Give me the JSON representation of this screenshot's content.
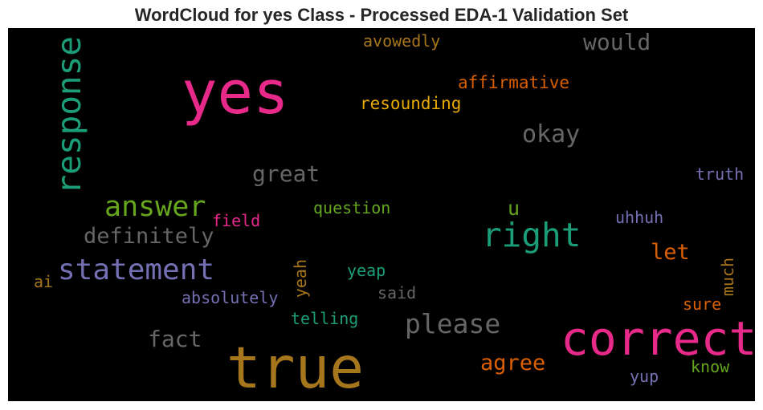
{
  "chart_data": {
    "type": "wordcloud",
    "title": "WordCloud for yes Class - Processed EDA-1 Validation Set",
    "background": "#000000",
    "words": [
      {
        "text": "yes",
        "weight": 1.0,
        "color": "#e7298a",
        "rotated": false
      },
      {
        "text": "true",
        "weight": 0.96,
        "color": "#a6761d",
        "rotated": false
      },
      {
        "text": "correct",
        "weight": 0.78,
        "color": "#e7298a",
        "rotated": false
      },
      {
        "text": "response",
        "weight": 0.55,
        "color": "#1b9e77",
        "rotated": true
      },
      {
        "text": "right",
        "weight": 0.56,
        "color": "#1b9e77",
        "rotated": false
      },
      {
        "text": "statement",
        "weight": 0.48,
        "color": "#7570b3",
        "rotated": false
      },
      {
        "text": "answer",
        "weight": 0.47,
        "color": "#66a61e",
        "rotated": false
      },
      {
        "text": "please",
        "weight": 0.45,
        "color": "#666666",
        "rotated": false
      },
      {
        "text": "definitely",
        "weight": 0.37,
        "color": "#666666",
        "rotated": false
      },
      {
        "text": "okay",
        "weight": 0.4,
        "color": "#666666",
        "rotated": false
      },
      {
        "text": "great",
        "weight": 0.38,
        "color": "#666666",
        "rotated": false
      },
      {
        "text": "would",
        "weight": 0.38,
        "color": "#666666",
        "rotated": false
      },
      {
        "text": "fact",
        "weight": 0.38,
        "color": "#666666",
        "rotated": false
      },
      {
        "text": "agree",
        "weight": 0.37,
        "color": "#d95f02",
        "rotated": false
      },
      {
        "text": "let",
        "weight": 0.36,
        "color": "#d95f02",
        "rotated": false
      },
      {
        "text": "u",
        "weight": 0.34,
        "color": "#66a61e",
        "rotated": false
      },
      {
        "text": "affirmative",
        "weight": 0.28,
        "color": "#d95f02",
        "rotated": false
      },
      {
        "text": "resounding",
        "weight": 0.28,
        "color": "#e6ab02",
        "rotated": false
      },
      {
        "text": "avowedly",
        "weight": 0.27,
        "color": "#a6761d",
        "rotated": false
      },
      {
        "text": "question",
        "weight": 0.27,
        "color": "#66a61e",
        "rotated": false
      },
      {
        "text": "field",
        "weight": 0.27,
        "color": "#e7298a",
        "rotated": false
      },
      {
        "text": "absolutely",
        "weight": 0.27,
        "color": "#7570b3",
        "rotated": false
      },
      {
        "text": "telling",
        "weight": 0.27,
        "color": "#1b9e77",
        "rotated": false
      },
      {
        "text": "yeap",
        "weight": 0.27,
        "color": "#1b9e77",
        "rotated": false
      },
      {
        "text": "said",
        "weight": 0.27,
        "color": "#666666",
        "rotated": false
      },
      {
        "text": "yeah",
        "weight": 0.27,
        "color": "#a6761d",
        "rotated": true
      },
      {
        "text": "much",
        "weight": 0.27,
        "color": "#a6761d",
        "rotated": true
      },
      {
        "text": "truth",
        "weight": 0.27,
        "color": "#7570b3",
        "rotated": false
      },
      {
        "text": "uhhuh",
        "weight": 0.27,
        "color": "#7570b3",
        "rotated": false
      },
      {
        "text": "sure",
        "weight": 0.27,
        "color": "#d95f02",
        "rotated": false
      },
      {
        "text": "know",
        "weight": 0.27,
        "color": "#66a61e",
        "rotated": false
      },
      {
        "text": "yup",
        "weight": 0.27,
        "color": "#7570b3",
        "rotated": false
      },
      {
        "text": "ai",
        "weight": 0.27,
        "color": "#a6761d",
        "rotated": false
      }
    ]
  }
}
